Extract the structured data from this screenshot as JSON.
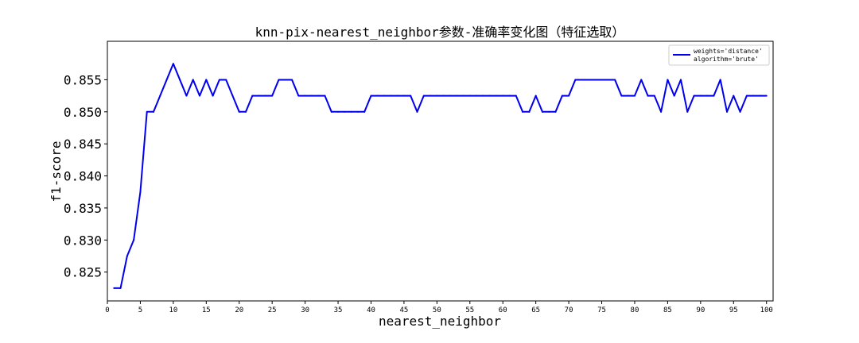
{
  "chart_data": {
    "type": "line",
    "title": "knn-pix-nearest_neighbor参数-准确率变化图（特征选取）",
    "xlabel": "nearest_neighbor",
    "ylabel": "f1-score",
    "xlim": [
      0,
      101
    ],
    "ylim": [
      0.8205,
      0.861
    ],
    "xticks": [
      0,
      5,
      10,
      15,
      20,
      25,
      30,
      35,
      40,
      45,
      50,
      55,
      60,
      65,
      70,
      75,
      80,
      85,
      90,
      95,
      100
    ],
    "xtick_labels": [
      "0",
      "5",
      "10",
      "15",
      "20",
      "25",
      "30",
      "35",
      "40",
      "45",
      "50",
      "55",
      "60",
      "65",
      "70",
      "75",
      "80",
      "85",
      "90",
      "95",
      "100"
    ],
    "yticks": [
      0.825,
      0.83,
      0.835,
      0.84,
      0.845,
      0.85,
      0.855
    ],
    "ytick_labels": [
      "0.825",
      "0.830",
      "0.835",
      "0.840",
      "0.845",
      "0.850",
      "0.855"
    ],
    "grid": false,
    "legend_position": "top-right",
    "legend_lines": [
      "weights='distance'",
      "algorithm='brute'"
    ],
    "series": [
      {
        "color": "#0000ee",
        "x": [
          1,
          2,
          3,
          4,
          5,
          6,
          7,
          8,
          9,
          10,
          11,
          12,
          13,
          14,
          15,
          16,
          17,
          18,
          19,
          20,
          21,
          22,
          23,
          24,
          25,
          26,
          27,
          28,
          29,
          30,
          31,
          32,
          33,
          34,
          35,
          36,
          37,
          38,
          39,
          40,
          41,
          42,
          43,
          44,
          45,
          46,
          47,
          48,
          49,
          50,
          51,
          52,
          53,
          54,
          55,
          56,
          57,
          58,
          59,
          60,
          61,
          62,
          63,
          64,
          65,
          66,
          67,
          68,
          69,
          70,
          71,
          72,
          73,
          74,
          75,
          76,
          77,
          78,
          79,
          80,
          81,
          82,
          83,
          84,
          85,
          86,
          87,
          88,
          89,
          90,
          91,
          92,
          93,
          94,
          95,
          96,
          97,
          98,
          99,
          100
        ],
        "y": [
          0.8225,
          0.8225,
          0.8275,
          0.83,
          0.8375,
          0.85,
          0.85,
          0.8525,
          0.855,
          0.8575,
          0.855,
          0.8525,
          0.855,
          0.8525,
          0.855,
          0.8525,
          0.855,
          0.855,
          0.8525,
          0.85,
          0.85,
          0.8525,
          0.8525,
          0.8525,
          0.8525,
          0.855,
          0.855,
          0.855,
          0.8525,
          0.8525,
          0.8525,
          0.8525,
          0.8525,
          0.85,
          0.85,
          0.85,
          0.85,
          0.85,
          0.85,
          0.8525,
          0.8525,
          0.8525,
          0.8525,
          0.8525,
          0.8525,
          0.8525,
          0.85,
          0.8525,
          0.8525,
          0.8525,
          0.8525,
          0.8525,
          0.8525,
          0.8525,
          0.8525,
          0.8525,
          0.8525,
          0.8525,
          0.8525,
          0.8525,
          0.8525,
          0.8525,
          0.85,
          0.85,
          0.8525,
          0.85,
          0.85,
          0.85,
          0.8525,
          0.8525,
          0.855,
          0.855,
          0.855,
          0.855,
          0.855,
          0.855,
          0.855,
          0.8525,
          0.8525,
          0.8525,
          0.855,
          0.8525,
          0.8525,
          0.85,
          0.855,
          0.8525,
          0.855,
          0.85,
          0.8525,
          0.8525,
          0.8525,
          0.8525,
          0.855,
          0.85,
          0.8525,
          0.85,
          0.8525,
          0.8525,
          0.8525,
          0.8525
        ]
      }
    ]
  }
}
